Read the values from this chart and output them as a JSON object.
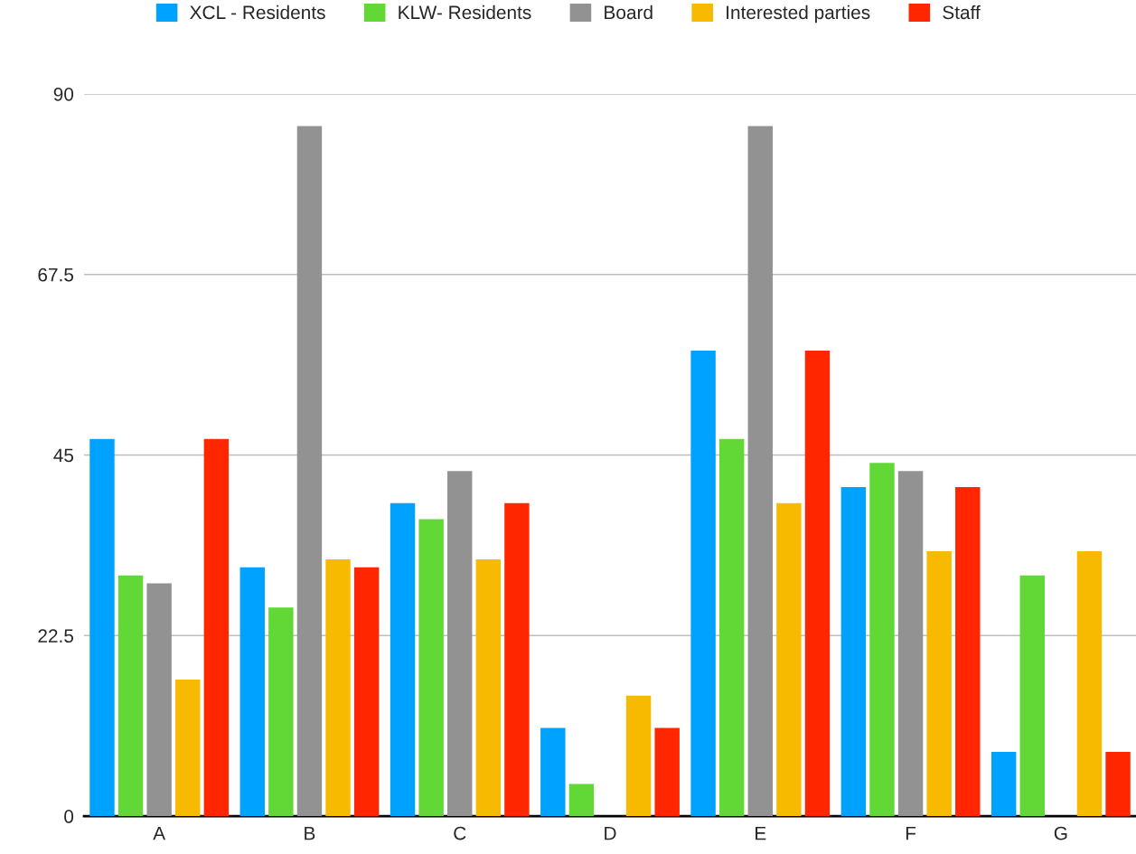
{
  "chart_data": {
    "type": "bar",
    "categories": [
      "A",
      "B",
      "C",
      "D",
      "E",
      "F",
      "G"
    ],
    "series": [
      {
        "name": "XCL - Residents",
        "color": "#00a2ff",
        "values": [
          47,
          31,
          39,
          11,
          58,
          41,
          8
        ]
      },
      {
        "name": "KLW- Residents",
        "color": "#61d836",
        "values": [
          30,
          26,
          37,
          4,
          47,
          44,
          30
        ]
      },
      {
        "name": "Board",
        "color": "#929292",
        "values": [
          29,
          86,
          43,
          null,
          86,
          43,
          null
        ]
      },
      {
        "name": "Interested parties",
        "color": "#f8ba00",
        "values": [
          17,
          32,
          32,
          15,
          39,
          33,
          33
        ]
      },
      {
        "name": "Staff",
        "color": "#ff2600",
        "values": [
          47,
          31,
          39,
          11,
          58,
          41,
          8
        ]
      }
    ],
    "ylim": [
      0,
      90
    ],
    "yticks": [
      0,
      22.5,
      45,
      67.5,
      90
    ],
    "grid": "y",
    "legend": "top"
  }
}
